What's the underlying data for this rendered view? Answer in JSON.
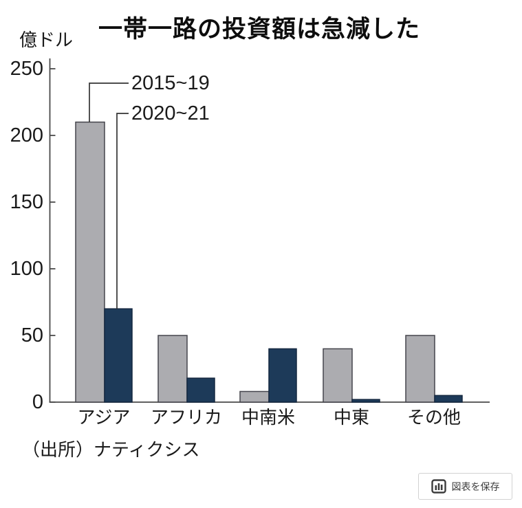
{
  "title": "一帯一路の投資額は急減した",
  "unit_label": "億ドル",
  "source": "（出所）ナティクシス",
  "save_button": {
    "label": "図表を保存",
    "icon": "bar-chart-icon"
  },
  "colors": {
    "series_2015_19": "#acacb0",
    "series_2020_21": "#1d3a59",
    "bar_border_gray": "#45454c",
    "bar_border_blue": "#152840",
    "axis": "#4a4a4a",
    "text": "#1a1a1a",
    "connector": "#333333"
  },
  "chart_data": {
    "type": "bar",
    "categories": [
      "アジア",
      "アフリカ",
      "中南米",
      "中東",
      "その他"
    ],
    "series": [
      {
        "name": "2015~19",
        "color": "#acacb0",
        "values": [
          210,
          50,
          8,
          40,
          50
        ]
      },
      {
        "name": "2020~21",
        "color": "#1d3a59",
        "values": [
          70,
          18,
          40,
          2,
          5
        ]
      }
    ],
    "title": "一帯一路の投資額は急減した",
    "xlabel": "",
    "ylabel": "億ドル",
    "ylim": [
      0,
      250
    ],
    "yticks": [
      0,
      50,
      100,
      150,
      200,
      250
    ],
    "grid": false,
    "legend_position": "callouts-top-left"
  }
}
